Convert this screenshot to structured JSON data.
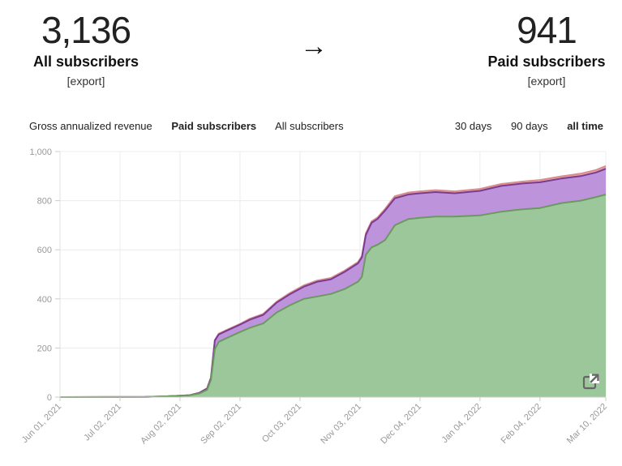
{
  "stats": {
    "all": {
      "value": "3,136",
      "label": "All subscribers",
      "export": "[export]"
    },
    "arrow": "→",
    "paid": {
      "value": "941",
      "label": "Paid subscribers",
      "export": "[export]"
    }
  },
  "tabs": [
    {
      "label": "Gross annualized revenue",
      "active": false
    },
    {
      "label": "Paid subscribers",
      "active": true
    },
    {
      "label": "All subscribers",
      "active": false
    }
  ],
  "ranges": [
    {
      "label": "30 days",
      "active": false
    },
    {
      "label": "90 days",
      "active": false
    },
    {
      "label": "all time",
      "active": true
    }
  ],
  "chart_data": {
    "type": "area",
    "ylim": [
      0,
      1000
    ],
    "yticks": [
      0,
      200,
      400,
      600,
      800,
      1000
    ],
    "ytick_labels": [
      "0",
      "200",
      "400",
      "600",
      "800",
      "1,000"
    ],
    "x_dates": [
      "2021-06-01",
      "2022-03-10"
    ],
    "xtick_dates": [
      "2021-06-01",
      "2021-07-02",
      "2021-08-02",
      "2021-09-02",
      "2021-10-03",
      "2021-11-03",
      "2021-12-04",
      "2022-01-04",
      "2022-02-04",
      "2022-03-10"
    ],
    "xtick_labels": [
      "Jun 01, 2021",
      "Jul 02, 2021",
      "Aug 02, 2021",
      "Sep 02, 2021",
      "Oct 03, 2021",
      "Nov 03, 2021",
      "Dec 04, 2021",
      "Jan 04, 2022",
      "Feb 04, 2022",
      "Mar 10, 2022"
    ],
    "grid": true,
    "x": [
      "2021-06-01",
      "2021-07-15",
      "2021-07-25",
      "2021-08-02",
      "2021-08-07",
      "2021-08-12",
      "2021-08-16",
      "2021-08-18",
      "2021-08-20",
      "2021-08-22",
      "2021-08-26",
      "2021-09-02",
      "2021-09-07",
      "2021-09-14",
      "2021-09-21",
      "2021-09-28",
      "2021-10-05",
      "2021-10-12",
      "2021-10-19",
      "2021-10-26",
      "2021-11-02",
      "2021-11-04",
      "2021-11-06",
      "2021-11-09",
      "2021-11-12",
      "2021-11-16",
      "2021-11-21",
      "2021-11-28",
      "2021-12-04",
      "2021-12-12",
      "2021-12-22",
      "2022-01-04",
      "2022-01-15",
      "2022-01-26",
      "2022-02-04",
      "2022-02-15",
      "2022-02-25",
      "2022-03-05",
      "2022-03-10"
    ],
    "series": [
      {
        "color": "#6a9a5e",
        "fill": "#9cc79a",
        "values": [
          0,
          1,
          3,
          6,
          8,
          15,
          30,
          70,
          195,
          225,
          240,
          265,
          282,
          300,
          345,
          375,
          400,
          410,
          420,
          440,
          470,
          490,
          580,
          610,
          620,
          640,
          700,
          725,
          730,
          735,
          735,
          740,
          755,
          765,
          770,
          790,
          800,
          815,
          825
        ]
      },
      {
        "color": "#7a3c93",
        "fill": "#bd93dc",
        "values": [
          0,
          1,
          3,
          6,
          8,
          17,
          35,
          78,
          230,
          255,
          270,
          295,
          315,
          335,
          385,
          420,
          450,
          470,
          480,
          510,
          545,
          570,
          660,
          710,
          725,
          760,
          810,
          825,
          830,
          835,
          830,
          840,
          860,
          870,
          875,
          890,
          900,
          915,
          930
        ]
      },
      {
        "color": "#d88c8c",
        "fill": "#e6a8a8",
        "values": [
          0,
          1,
          3,
          6,
          8,
          18,
          36,
          80,
          233,
          258,
          273,
          298,
          319,
          339,
          389,
          425,
          455,
          475,
          485,
          515,
          550,
          575,
          667,
          716,
          731,
          767,
          818,
          833,
          838,
          843,
          838,
          848,
          868,
          878,
          884,
          899,
          910,
          925,
          941
        ]
      }
    ]
  },
  "icons": {
    "open_in_new": "external-link-icon"
  }
}
